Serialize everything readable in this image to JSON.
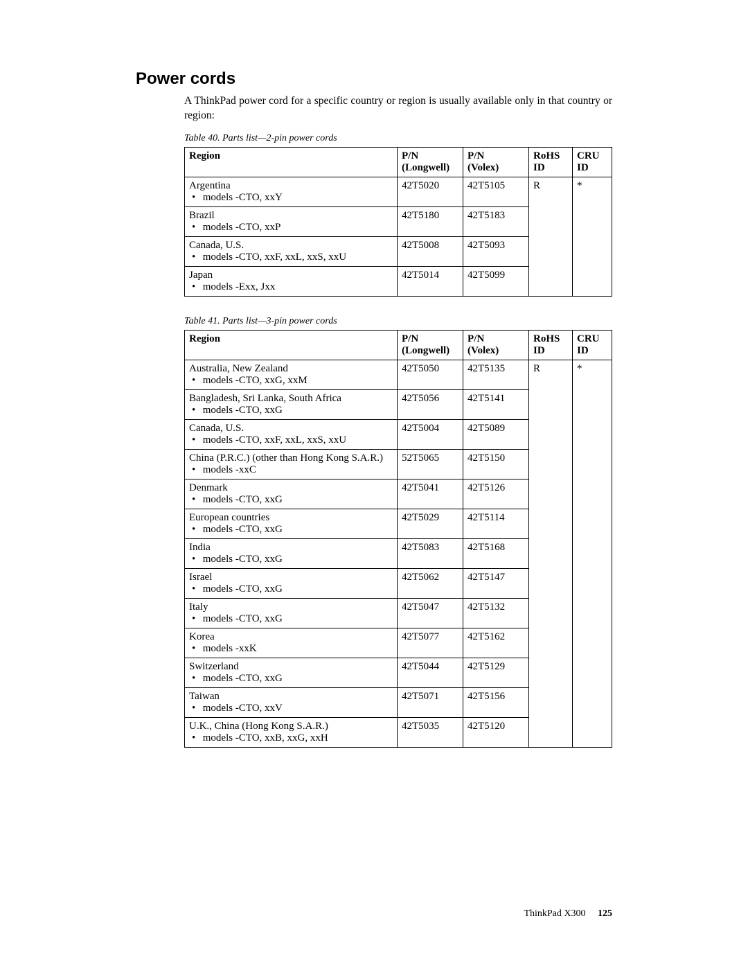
{
  "heading": "Power cords",
  "intro": "A ThinkPad power cord for a specific country or region is usually available only in that country or region:",
  "table1": {
    "caption": "Table 40. Parts list—2-pin power cords",
    "columns": {
      "region": "Region",
      "pnl1": "P/N",
      "pnl2": "(Longwell)",
      "pnv1": "P/N",
      "pnv2": "(Volex)",
      "rohs1": "RoHS",
      "rohs2": "ID",
      "cru1": "CRU",
      "cru2": "ID"
    },
    "rohs": "R",
    "cru": "*",
    "rows": [
      {
        "region": "Argentina",
        "models": "models -CTO, xxY",
        "pnl": "42T5020",
        "pnv": "42T5105"
      },
      {
        "region": "Brazil",
        "models": "models -CTO, xxP",
        "pnl": "42T5180",
        "pnv": "42T5183"
      },
      {
        "region": "Canada, U.S.",
        "models": "models -CTO, xxF, xxL, xxS, xxU",
        "pnl": "42T5008",
        "pnv": "42T5093"
      },
      {
        "region": "Japan",
        "models": "models -Exx, Jxx",
        "pnl": "42T5014",
        "pnv": "42T5099"
      }
    ]
  },
  "table2": {
    "caption": "Table 41. Parts list—3-pin power cords",
    "columns": {
      "region": "Region",
      "pnl1": "P/N",
      "pnl2": "(Longwell)",
      "pnv1": "P/N",
      "pnv2": "(Volex)",
      "rohs1": "RoHS",
      "rohs2": "ID",
      "cru1": "CRU",
      "cru2": "ID"
    },
    "rohs": "R",
    "cru": "*",
    "rows": [
      {
        "region": "Australia, New Zealand",
        "models": "models -CTO, xxG, xxM",
        "pnl": "42T5050",
        "pnv": "42T5135"
      },
      {
        "region": "Bangladesh, Sri Lanka, South Africa",
        "models": "models -CTO, xxG",
        "pnl": "42T5056",
        "pnv": "42T5141"
      },
      {
        "region": "Canada, U.S.",
        "models": "models -CTO, xxF, xxL, xxS, xxU",
        "pnl": "42T5004",
        "pnv": "42T5089"
      },
      {
        "region": "China (P.R.C.) (other than Hong Kong S.A.R.)",
        "models": "models -xxC",
        "pnl": "52T5065",
        "pnv": "42T5150"
      },
      {
        "region": "Denmark",
        "models": "models -CTO, xxG",
        "pnl": "42T5041",
        "pnv": "42T5126"
      },
      {
        "region": "European countries",
        "models": "models -CTO, xxG",
        "pnl": "42T5029",
        "pnv": "42T5114"
      },
      {
        "region": "India",
        "models": "models -CTO, xxG",
        "pnl": "42T5083",
        "pnv": "42T5168"
      },
      {
        "region": "Israel",
        "models": "models -CTO, xxG",
        "pnl": "42T5062",
        "pnv": "42T5147"
      },
      {
        "region": "Italy",
        "models": "models -CTO, xxG",
        "pnl": "42T5047",
        "pnv": "42T5132"
      },
      {
        "region": "Korea",
        "models": "models -xxK",
        "pnl": "42T5077",
        "pnv": "42T5162"
      },
      {
        "region": "Switzerland",
        "models": "models -CTO, xxG",
        "pnl": "42T5044",
        "pnv": "42T5129"
      },
      {
        "region": "Taiwan",
        "models": "models -CTO, xxV",
        "pnl": "42T5071",
        "pnv": "42T5156"
      },
      {
        "region": "U.K., China (Hong Kong S.A.R.)",
        "models": "models -CTO, xxB, xxG, xxH",
        "pnl": "42T5035",
        "pnv": "42T5120"
      }
    ]
  },
  "footer": {
    "product": "ThinkPad X300",
    "page": "125"
  }
}
